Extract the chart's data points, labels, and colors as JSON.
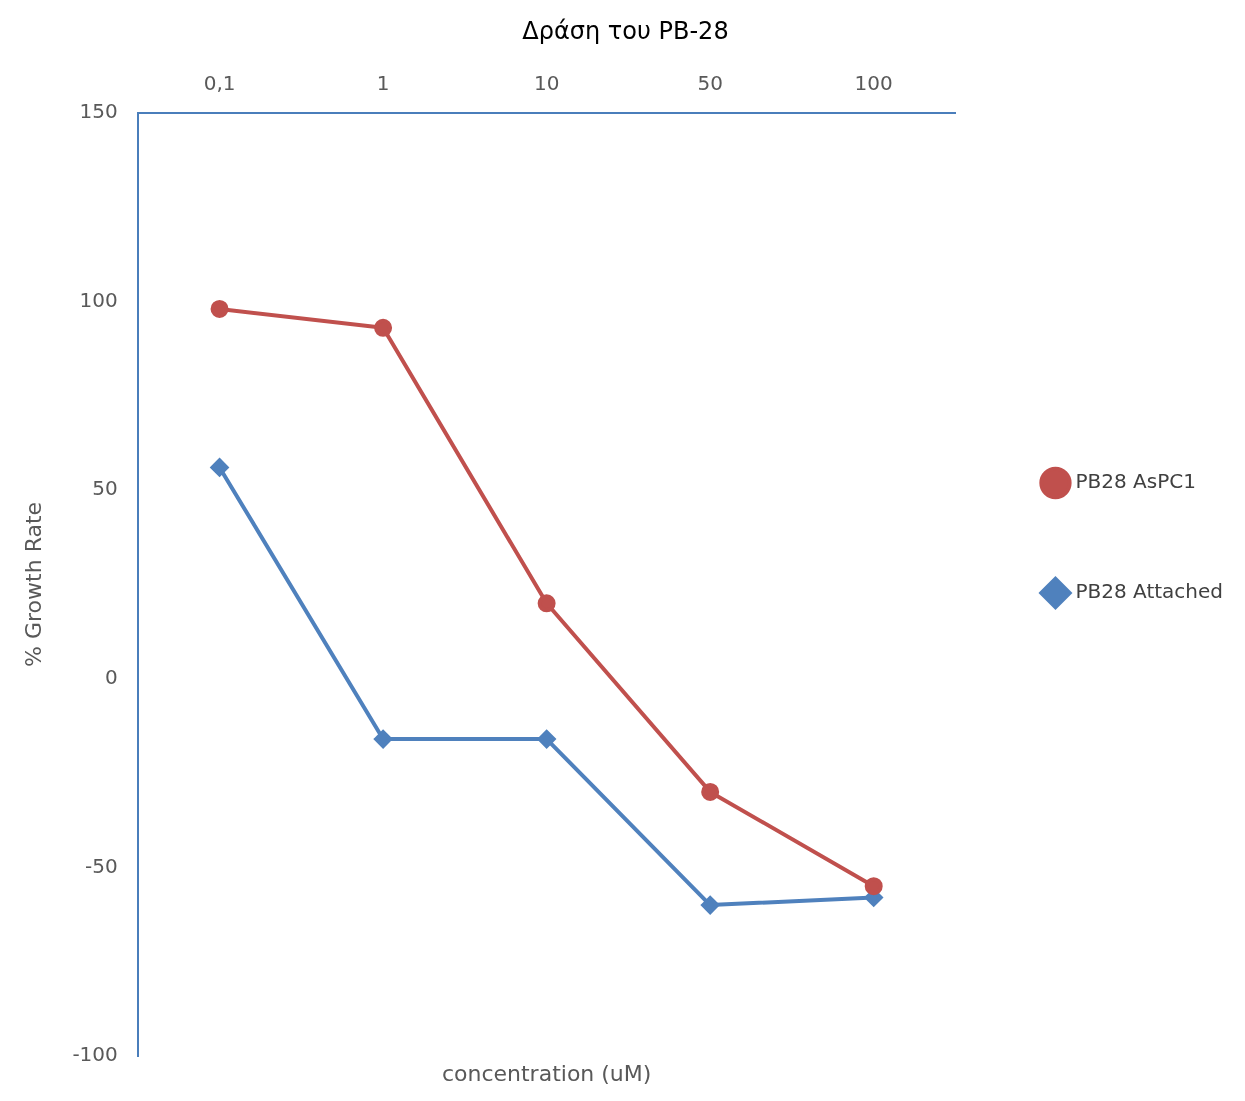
{
  "chart_data": {
    "type": "line",
    "title": "Δράση του PB-28",
    "xlabel": "concentration (uM)",
    "ylabel": "% Growth Rate",
    "categories": [
      "0,1",
      "1",
      "10",
      "50",
      "100"
    ],
    "series": [
      {
        "name": "PB28 AsPC1",
        "color": "#c0504d",
        "marker": "circle",
        "values": [
          98,
          93,
          20,
          -30,
          -55
        ]
      },
      {
        "name": "PB28 Attached",
        "color": "#4f81bd",
        "marker": "diamond",
        "values": [
          56,
          -16,
          -16,
          -60,
          -58
        ]
      }
    ],
    "ylim": [
      -100,
      150
    ],
    "yticks": [
      -100,
      -50,
      0,
      50,
      100,
      150
    ],
    "grid": false,
    "legend": "right",
    "line_style": "solid"
  }
}
